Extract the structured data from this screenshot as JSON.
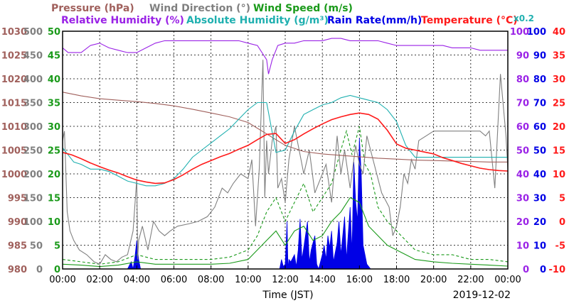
{
  "chart_data": {
    "type": "line",
    "date": "2019-12-02",
    "xlabel": "Time (JST)",
    "x_ticks": [
      "00:00",
      "02:00",
      "04:00",
      "06:00",
      "08:00",
      "10:00",
      "12:00",
      "14:00",
      "16:00",
      "18:00",
      "20:00",
      "22:00",
      "00:00"
    ],
    "legend": {
      "row1": [
        {
          "text": "Pressure (hPa)",
          "color": "#a0605c"
        },
        {
          "text": "Wind Direction (°)",
          "color": "#808080"
        },
        {
          "text": "Wind Speed (m/s)",
          "color": "#1a9a1a"
        }
      ],
      "row2": [
        {
          "text": "Relative Humidity (%)",
          "color": "#9a22e6"
        },
        {
          "text": "Absolute Humidity (g/m³)",
          "color": "#20b0b0"
        },
        {
          "text": "Rain Rate(mm/h)",
          "color": "#0000e6"
        },
        {
          "text": "Temperature (°C)",
          "color": "#ff1a1a"
        }
      ],
      "abs_scale_note": "x0.2"
    },
    "axes": {
      "pressure": {
        "label": "hPa",
        "color": "#a0605c",
        "ticks": [
          "1030",
          "1025",
          "1020",
          "1015",
          "1010",
          "1005",
          "1000",
          "995",
          "990",
          "985",
          "980"
        ],
        "ylim": [
          980,
          1030
        ]
      },
      "wind_direction": {
        "label": "deg",
        "color": "#808080",
        "ticks": [
          "500",
          "450",
          "400",
          "350",
          "300",
          "250",
          "200",
          "150",
          "100",
          "50",
          "0"
        ],
        "ylim": [
          0,
          500
        ]
      },
      "wind_speed": {
        "label": "m/s",
        "color": "#1a9a1a",
        "ticks": [
          "50",
          "45",
          "40",
          "35",
          "30",
          "25",
          "20",
          "15",
          "10",
          "5",
          "0"
        ],
        "ylim": [
          0,
          50
        ]
      },
      "relative_humidity": {
        "label": "%",
        "color": "#9a22e6",
        "ticks": [
          "100",
          "90",
          "80",
          "70",
          "60",
          "50",
          "40",
          "30",
          "20",
          "10",
          "0"
        ],
        "ylim": [
          0,
          100
        ]
      },
      "rain_rate": {
        "label": "mm/h",
        "color": "#0000e6",
        "ticks": [
          "100",
          "90",
          "80",
          "70",
          "60",
          "50",
          "40",
          "30",
          "20",
          "10",
          "0"
        ],
        "ylim": [
          0,
          100
        ]
      },
      "temperature": {
        "label": "°C",
        "color": "#ff1a1a",
        "ticks": [
          "40",
          "35",
          "30",
          "25",
          "20",
          "15",
          "10",
          "5",
          "0",
          "-5",
          "-10"
        ],
        "ylim": [
          -10,
          40
        ]
      }
    },
    "grid": true,
    "series": [
      {
        "name": "Relative Humidity (%)",
        "axis": "relative_humidity",
        "color": "#9a22e6",
        "x": [
          0,
          0.3,
          0.6,
          1,
          1.5,
          2,
          2.5,
          3,
          3.5,
          4,
          4.5,
          5,
          5.5,
          6,
          6.5,
          7,
          7.5,
          8,
          8.5,
          9,
          9.5,
          10,
          10.5,
          11,
          11.1,
          11.3,
          11.6,
          12,
          12.5,
          13,
          13.5,
          14,
          14.5,
          15,
          15.5,
          16,
          16.5,
          17,
          17.5,
          18,
          18.5,
          19,
          19.5,
          20,
          20.5,
          21,
          21.5,
          22,
          22.5,
          23,
          23.5,
          24
        ],
        "values": [
          93,
          91,
          91,
          91,
          94,
          95,
          93,
          92,
          91,
          91,
          93,
          95,
          96,
          96,
          96,
          96,
          96,
          96,
          96,
          96,
          96,
          95,
          94,
          88,
          82,
          88,
          94,
          95,
          95,
          96,
          96,
          96,
          97,
          97,
          96,
          96,
          96,
          96,
          95,
          94,
          94,
          94,
          94,
          94,
          94,
          93,
          93,
          93,
          92,
          92,
          92,
          92
        ]
      },
      {
        "name": "Absolute Humidity (g/m³)",
        "axis": "relative_humidity",
        "color": "#20b0b0",
        "x": [
          0,
          0.3,
          0.6,
          1,
          1.5,
          2,
          2.5,
          3,
          3.5,
          4,
          4.5,
          5,
          5.5,
          6,
          6.5,
          7,
          7.5,
          8,
          8.5,
          9,
          9.5,
          10,
          10.5,
          11,
          11.5,
          12,
          12.5,
          13,
          13.5,
          14,
          14.5,
          15,
          15.5,
          16,
          16.5,
          17,
          17.5,
          18,
          18.5,
          19,
          19.5,
          20,
          20.5,
          21,
          21.5,
          22,
          22.5,
          23,
          23.5,
          24
        ],
        "values": [
          51,
          48,
          45,
          44,
          42,
          42,
          41,
          39,
          37,
          36,
          35,
          35,
          36,
          38,
          42,
          47,
          50,
          53,
          56,
          59,
          63,
          67,
          70,
          70,
          49,
          50,
          58,
          65,
          67,
          69,
          70,
          72,
          73,
          72,
          71,
          70,
          67,
          62,
          52,
          47,
          47,
          47,
          47,
          47,
          47,
          47,
          47,
          47,
          47,
          47
        ]
      },
      {
        "name": "Pressure (hPa)",
        "axis": "pressure",
        "color": "#a0605c",
        "x": [
          0,
          1,
          2,
          3,
          4,
          5,
          6,
          7,
          8,
          9,
          10,
          11,
          12,
          13,
          14,
          15,
          16,
          17,
          18,
          19,
          20,
          21,
          22,
          23,
          24
        ],
        "values": [
          1017.2,
          1016.4,
          1015.8,
          1015.5,
          1015.2,
          1014.8,
          1014.3,
          1013.6,
          1012.8,
          1012.0,
          1010.8,
          1008.4,
          1006.0,
          1004.7,
          1004.2,
          1003.9,
          1003.6,
          1003.3,
          1003.1,
          1002.9,
          1002.8,
          1002.7,
          1002.6,
          1002.5,
          1002.5
        ]
      },
      {
        "name": "Temperature (°C)",
        "axis": "temperature",
        "color": "#ff1a1a",
        "x": [
          0,
          0.5,
          1,
          1.5,
          2,
          2.5,
          3,
          3.5,
          4,
          4.5,
          5,
          5.5,
          6,
          6.5,
          7,
          7.5,
          8,
          8.5,
          9,
          9.5,
          10,
          10.5,
          11,
          11.5,
          12,
          12.5,
          13,
          13.5,
          14,
          14.5,
          15,
          15.5,
          16,
          16.5,
          17,
          17.5,
          18,
          18.5,
          19,
          19.5,
          20,
          20.5,
          21,
          21.5,
          22,
          22.5,
          23,
          23.5,
          24
        ],
        "values": [
          14.5,
          14.0,
          13.2,
          12.3,
          11.5,
          10.8,
          10.2,
          9.4,
          8.7,
          8.3,
          8.0,
          8.1,
          8.8,
          9.8,
          11.0,
          12.0,
          12.8,
          13.6,
          14.3,
          15.2,
          16.0,
          17.2,
          18.3,
          18.5,
          16.4,
          17.2,
          18.4,
          19.5,
          20.5,
          21.4,
          22.0,
          22.5,
          22.8,
          22.5,
          21.5,
          19.2,
          16.3,
          15.4,
          15.0,
          14.6,
          14.2,
          13.4,
          12.8,
          12.2,
          11.7,
          11.2,
          10.9,
          10.7,
          10.6
        ]
      },
      {
        "name": "Wind Direction (°)",
        "axis": "wind_direction",
        "color": "#808080",
        "x": [
          0,
          0.1,
          0.25,
          0.4,
          0.6,
          0.9,
          1.3,
          1.7,
          2,
          2.3,
          2.6,
          2.9,
          3.2,
          3.5,
          3.8,
          4,
          4.05,
          4.1,
          4.3,
          4.6,
          4.9,
          5.2,
          5.5,
          5.8,
          6.2,
          6.8,
          7.3,
          7.8,
          8.2,
          8.6,
          8.9,
          9.2,
          9.6,
          10,
          10.2,
          10.4,
          10.6,
          10.8,
          10.9,
          11,
          11.1,
          11.3,
          11.5,
          11.6,
          11.8,
          12,
          12.2,
          12.5,
          12.8,
          13,
          13.3,
          13.6,
          13.9,
          14.2,
          14.5,
          14.8,
          15,
          15.2,
          15.5,
          15.8,
          16,
          16.2,
          16.4,
          16.8,
          17.2,
          17.6,
          17.8,
          18,
          18.2,
          18.4,
          18.6,
          18.8,
          19,
          19.2,
          19.6,
          20,
          20.5,
          21,
          21.5,
          22,
          22.5,
          22.8,
          23,
          23.3,
          23.6,
          23.9,
          24
        ],
        "values": [
          270,
          290,
          120,
          80,
          60,
          40,
          30,
          15,
          10,
          30,
          20,
          15,
          25,
          30,
          80,
          190,
          20,
          60,
          90,
          40,
          100,
          80,
          70,
          80,
          90,
          95,
          100,
          110,
          130,
          170,
          160,
          180,
          200,
          190,
          230,
          90,
          210,
          440,
          150,
          270,
          200,
          270,
          300,
          170,
          190,
          140,
          230,
          300,
          240,
          200,
          250,
          160,
          190,
          220,
          140,
          280,
          200,
          250,
          170,
          260,
          220,
          200,
          280,
          220,
          160,
          130,
          70,
          90,
          130,
          200,
          180,
          230,
          210,
          270,
          280,
          290,
          290,
          290,
          290,
          290,
          290,
          280,
          290,
          170,
          410,
          280,
          210
        ]
      },
      {
        "name": "Wind Speed (m/s)",
        "axis": "wind_speed",
        "color": "#1a9a1a",
        "x": [
          0,
          1,
          2,
          3,
          4,
          5,
          6,
          7,
          8,
          9,
          10,
          11,
          11.5,
          12,
          12.5,
          13,
          13.5,
          14,
          14.5,
          15,
          15.5,
          16,
          16.5,
          17,
          17.5,
          18,
          18.5,
          19,
          20,
          21,
          22,
          23,
          24
        ],
        "values": [
          1,
          0.8,
          0.5,
          0.8,
          1.5,
          1.0,
          1.0,
          1.0,
          1.0,
          1.2,
          2.0,
          6.0,
          8.0,
          5.0,
          8.0,
          9.0,
          6.0,
          7.0,
          10.0,
          12.0,
          15.0,
          14.0,
          9.0,
          7.0,
          5.0,
          4.0,
          3.0,
          2.0,
          1.5,
          1.2,
          1.0,
          0.8,
          0.6
        ]
      },
      {
        "name": "Wind Speed gust (m/s)",
        "axis": "wind_speed",
        "color": "#1a9a1a",
        "dashed": true,
        "x": [
          0,
          1,
          2,
          3,
          4,
          5,
          6,
          7,
          8,
          9,
          10,
          10.5,
          11,
          11.5,
          12,
          12.5,
          13,
          13.5,
          14,
          14.5,
          15,
          15.3,
          15.6,
          16,
          16.3,
          16.6,
          17,
          17.5,
          18,
          18.5,
          19,
          20,
          21,
          22,
          23,
          24
        ],
        "values": [
          2,
          1.5,
          1,
          1.5,
          3,
          2,
          2,
          2,
          2,
          2.5,
          4,
          7,
          12,
          15,
          10,
          14,
          18,
          12,
          15,
          18,
          25,
          29,
          24,
          30,
          22,
          20,
          13,
          10,
          8,
          6,
          4,
          3,
          3,
          2,
          2,
          1.5
        ]
      },
      {
        "name": "Rain Rate (mm/h)",
        "axis": "rain_rate",
        "color": "#0000e6",
        "fill": true,
        "x": [
          0,
          3.5,
          3.7,
          3.8,
          3.9,
          4.0,
          4.1,
          4.2,
          4.5,
          7,
          10,
          11.7,
          11.8,
          11.9,
          12.0,
          12.1,
          12.15,
          12.2,
          12.3,
          12.5,
          12.6,
          12.7,
          12.8,
          12.9,
          13.0,
          13.2,
          13.3,
          13.4,
          13.6,
          13.7,
          13.8,
          14.0,
          14.1,
          14.2,
          14.3,
          14.4,
          14.5,
          14.6,
          14.8,
          14.9,
          15.0,
          15.2,
          15.3,
          15.4,
          15.5,
          15.6,
          15.7,
          15.8,
          15.9,
          16.0,
          16.1,
          16.2,
          16.4,
          16.6,
          17,
          24
        ],
        "values": [
          0,
          0,
          3,
          0,
          5,
          12,
          4,
          0,
          0,
          0,
          0,
          0,
          4,
          1,
          2,
          20,
          0,
          4,
          3,
          6,
          1,
          8,
          21,
          4,
          9,
          20,
          3,
          8,
          14,
          2,
          0,
          6,
          10,
          4,
          14,
          9,
          16,
          3,
          11,
          20,
          6,
          22,
          4,
          15,
          26,
          7,
          45,
          28,
          20,
          55,
          40,
          10,
          2,
          0,
          0,
          0
        ]
      }
    ]
  }
}
